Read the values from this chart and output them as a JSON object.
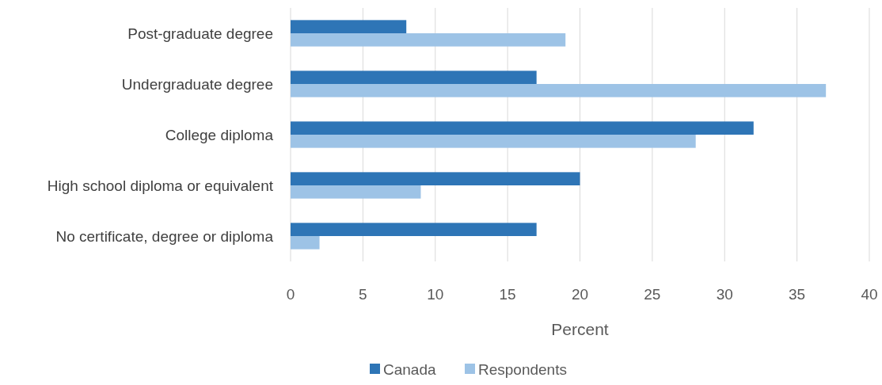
{
  "chart_data": {
    "type": "bar",
    "orientation": "horizontal",
    "xlabel": "Percent",
    "categories": [
      "Post-graduate degree",
      "Undergraduate degree",
      "College diploma",
      "High school diploma or equivalent",
      "No certificate, degree or diploma"
    ],
    "series": [
      {
        "name": "Canada",
        "color": "#2e75b6",
        "values": [
          8,
          17,
          32,
          20,
          17
        ]
      },
      {
        "name": "Respondents",
        "color": "#9dc3e6",
        "values": [
          19,
          37,
          28,
          9,
          2
        ]
      }
    ],
    "xlim": [
      0,
      40
    ],
    "xticks": [
      0,
      5,
      10,
      15,
      20,
      25,
      30,
      35,
      40
    ],
    "grid": "x",
    "legend": "bottom"
  }
}
